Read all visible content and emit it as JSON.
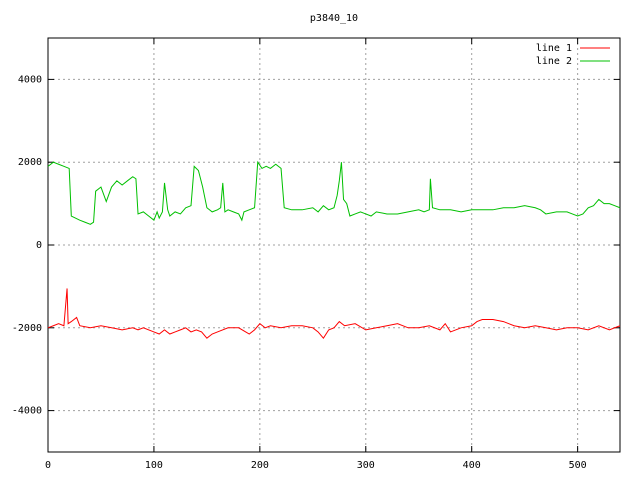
{
  "chart_data": {
    "type": "line",
    "title": "p3840_10",
    "xlim": [
      0,
      540
    ],
    "xticks": [
      0,
      100,
      200,
      300,
      400,
      500
    ],
    "ylim": [
      -5000,
      5000
    ],
    "yticks": [
      -4000,
      -2000,
      0,
      2000,
      4000
    ],
    "grid": true,
    "legend": "top-right",
    "series": [
      {
        "name": "line 1",
        "color": "#ff0000",
        "x": [
          0,
          5,
          10,
          15,
          18,
          19,
          22,
          27,
          30,
          40,
          50,
          60,
          70,
          80,
          85,
          90,
          100,
          105,
          110,
          115,
          120,
          125,
          130,
          135,
          140,
          145,
          150,
          155,
          160,
          170,
          180,
          190,
          195,
          200,
          205,
          210,
          220,
          230,
          240,
          250,
          255,
          260,
          265,
          270,
          275,
          280,
          290,
          300,
          310,
          320,
          330,
          340,
          350,
          360,
          370,
          375,
          380,
          390,
          400,
          405,
          410,
          420,
          430,
          440,
          450,
          460,
          470,
          480,
          490,
          500,
          510,
          520,
          530,
          540
        ],
        "values": [
          -2000,
          -1950,
          -1900,
          -1950,
          -1050,
          -1900,
          -1850,
          -1750,
          -1950,
          -2000,
          -1950,
          -2000,
          -2050,
          -2000,
          -2050,
          -2000,
          -2100,
          -2150,
          -2050,
          -2150,
          -2100,
          -2050,
          -2000,
          -2100,
          -2050,
          -2100,
          -2250,
          -2150,
          -2100,
          -2000,
          -2000,
          -2150,
          -2050,
          -1900,
          -2000,
          -1950,
          -2000,
          -1950,
          -1950,
          -2000,
          -2100,
          -2250,
          -2050,
          -2000,
          -1850,
          -1950,
          -1900,
          -2050,
          -2000,
          -1950,
          -1900,
          -2000,
          -2000,
          -1950,
          -2050,
          -1900,
          -2100,
          -2000,
          -1950,
          -1850,
          -1800,
          -1800,
          -1850,
          -1950,
          -2000,
          -1950,
          -2000,
          -2050,
          -2000,
          -2000,
          -2050,
          -1950,
          -2050,
          -1950
        ]
      },
      {
        "name": "line 2",
        "color": "#00c000",
        "x": [
          0,
          5,
          10,
          15,
          20,
          22,
          30,
          35,
          40,
          43,
          45,
          50,
          55,
          60,
          65,
          70,
          75,
          80,
          83,
          85,
          90,
          95,
          100,
          103,
          105,
          108,
          110,
          113,
          115,
          120,
          125,
          130,
          135,
          138,
          142,
          146,
          150,
          155,
          160,
          163,
          165,
          167,
          170,
          175,
          180,
          183,
          185,
          190,
          195,
          198,
          202,
          206,
          210,
          215,
          220,
          223,
          230,
          240,
          250,
          255,
          260,
          265,
          270,
          273,
          275,
          277,
          279,
          282,
          285,
          290,
          295,
          300,
          305,
          310,
          320,
          330,
          340,
          350,
          355,
          360,
          361,
          363,
          370,
          380,
          390,
          400,
          410,
          420,
          430,
          440,
          450,
          460,
          465,
          470,
          480,
          490,
          495,
          500,
          505,
          510,
          515,
          520,
          525,
          530,
          535,
          540
        ],
        "values": [
          1900,
          2000,
          1950,
          1900,
          1850,
          700,
          600,
          550,
          500,
          550,
          1300,
          1400,
          1050,
          1400,
          1550,
          1450,
          1550,
          1650,
          1600,
          750,
          800,
          700,
          600,
          800,
          650,
          800,
          1500,
          850,
          700,
          800,
          750,
          900,
          950,
          1900,
          1800,
          1400,
          900,
          800,
          850,
          900,
          1500,
          800,
          850,
          800,
          750,
          600,
          800,
          850,
          900,
          2000,
          1850,
          1900,
          1850,
          1950,
          1850,
          900,
          850,
          850,
          900,
          800,
          950,
          850,
          900,
          1200,
          1550,
          2000,
          1100,
          1000,
          700,
          750,
          800,
          750,
          700,
          800,
          750,
          750,
          800,
          850,
          800,
          850,
          1600,
          900,
          850,
          850,
          800,
          850,
          850,
          850,
          900,
          900,
          950,
          900,
          850,
          750,
          800,
          800,
          750,
          700,
          750,
          900,
          950,
          1100,
          1000,
          1000,
          950,
          900
        ]
      }
    ]
  }
}
